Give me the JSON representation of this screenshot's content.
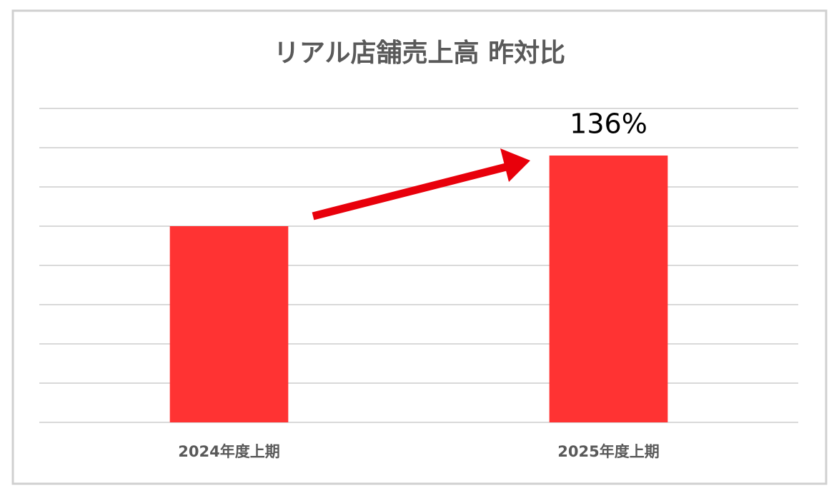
{
  "chart_data": {
    "type": "bar",
    "title": "リアル店舗売上高 昨対比",
    "categories": [
      "2024年度上期",
      "2025年度上期"
    ],
    "values": [
      100,
      136
    ],
    "value_labels": [
      null,
      "136%"
    ],
    "color": "#ff3333",
    "ylim": [
      0,
      160
    ],
    "yticks": [
      0,
      20,
      40,
      60,
      80,
      100,
      120,
      140,
      160
    ],
    "ytick_labels": false,
    "grid": true
  }
}
